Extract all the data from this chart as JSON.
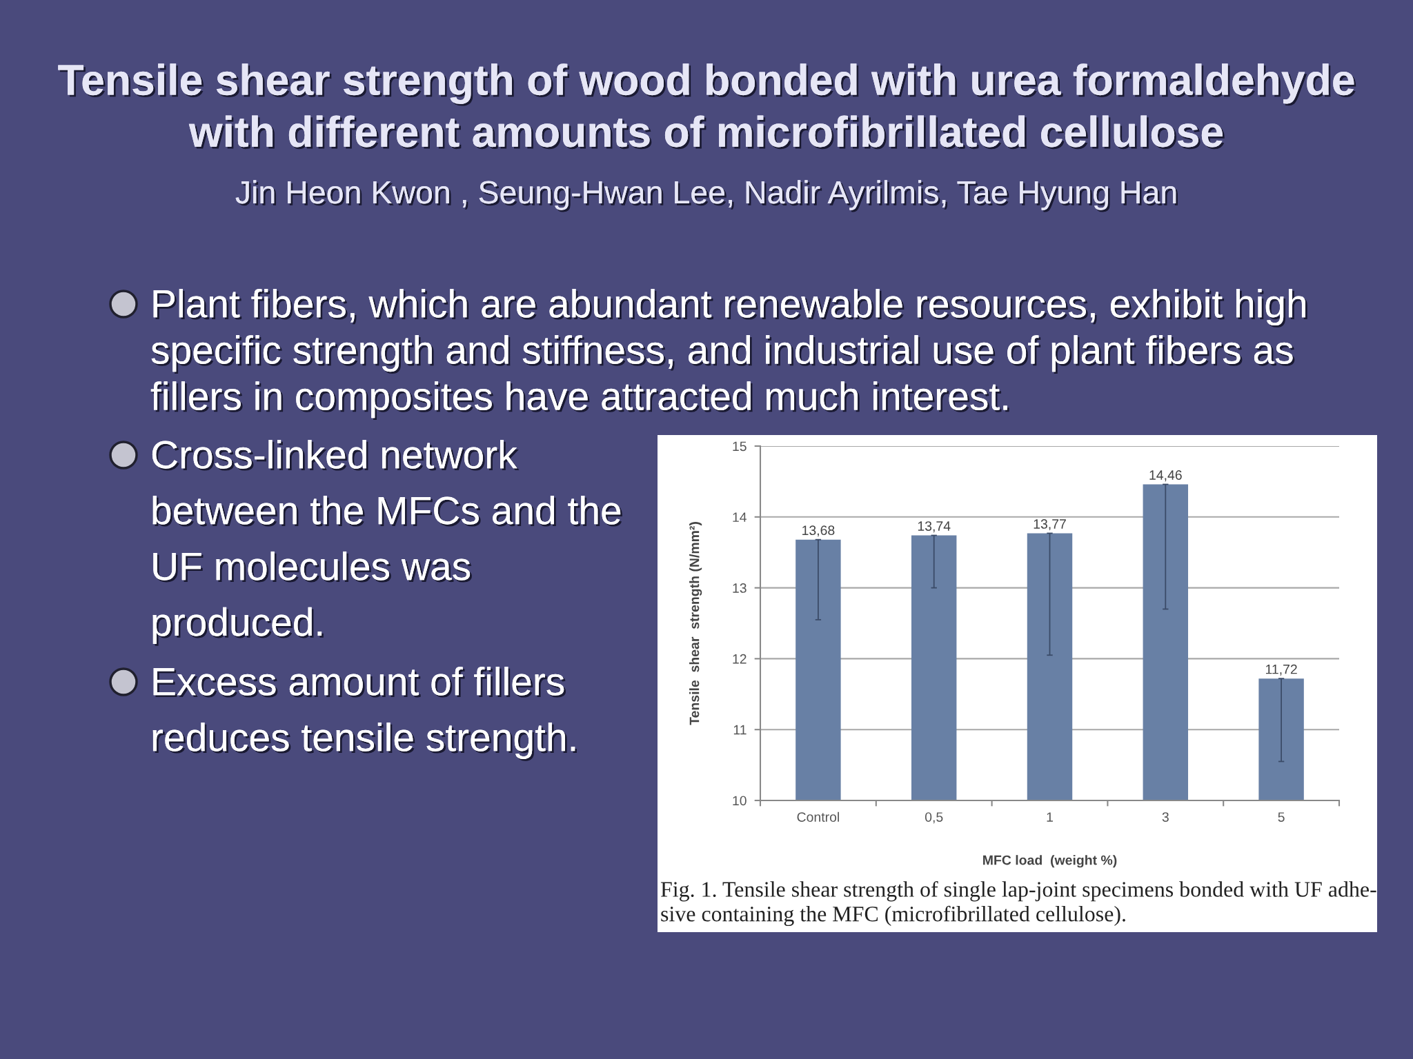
{
  "chart_data": {
    "type": "bar",
    "title": "Tensile shear strength of wood bonded with urea formaldehyde\nwith different amounts of microfibrillated cellulose",
    "subtitle": "Jin Heon Kwon , Seung-Hwan Lee, Nadir Ayrilmis, Tae Hyung Han",
    "xlabel": "MFC load  (weight %)",
    "ylabel": "Tensile  shear  strength (N/mm²)",
    "categories": [
      "Control",
      "0,5",
      "1",
      "3",
      "5"
    ],
    "values": [
      13.68,
      13.74,
      13.77,
      14.46,
      11.72
    ],
    "value_labels": [
      "13,68",
      "13,74",
      "13,77",
      "14,46",
      "11,72"
    ],
    "errors": [
      [
        12.55,
        13.68
      ],
      [
        13.0,
        13.74
      ],
      [
        12.05,
        13.77
      ],
      [
        12.7,
        14.46
      ],
      [
        10.55,
        11.72
      ]
    ],
    "color": "#6880a5",
    "ylim": [
      10,
      15
    ],
    "yticks": [
      10,
      11,
      12,
      13,
      14,
      15
    ],
    "grid": "y",
    "annotations": [
      "Plant fibers, which are abundant renewable resources, exhibit high\nspecific strength and stiffness, and industrial use of plant fibers as\nfillers in composites have attracted much interest.",
      "Cross-linked network\nbetween the MFCs and the\nUF molecules was\nproduced.",
      "Excess amount of fillers\nreduces tensile strength.",
      "Fig. 1. Tensile shear strength of single lap-joint specimens bonded with UF adhe-\nsive containing the MFC (microfibrillated cellulose)."
    ]
  }
}
